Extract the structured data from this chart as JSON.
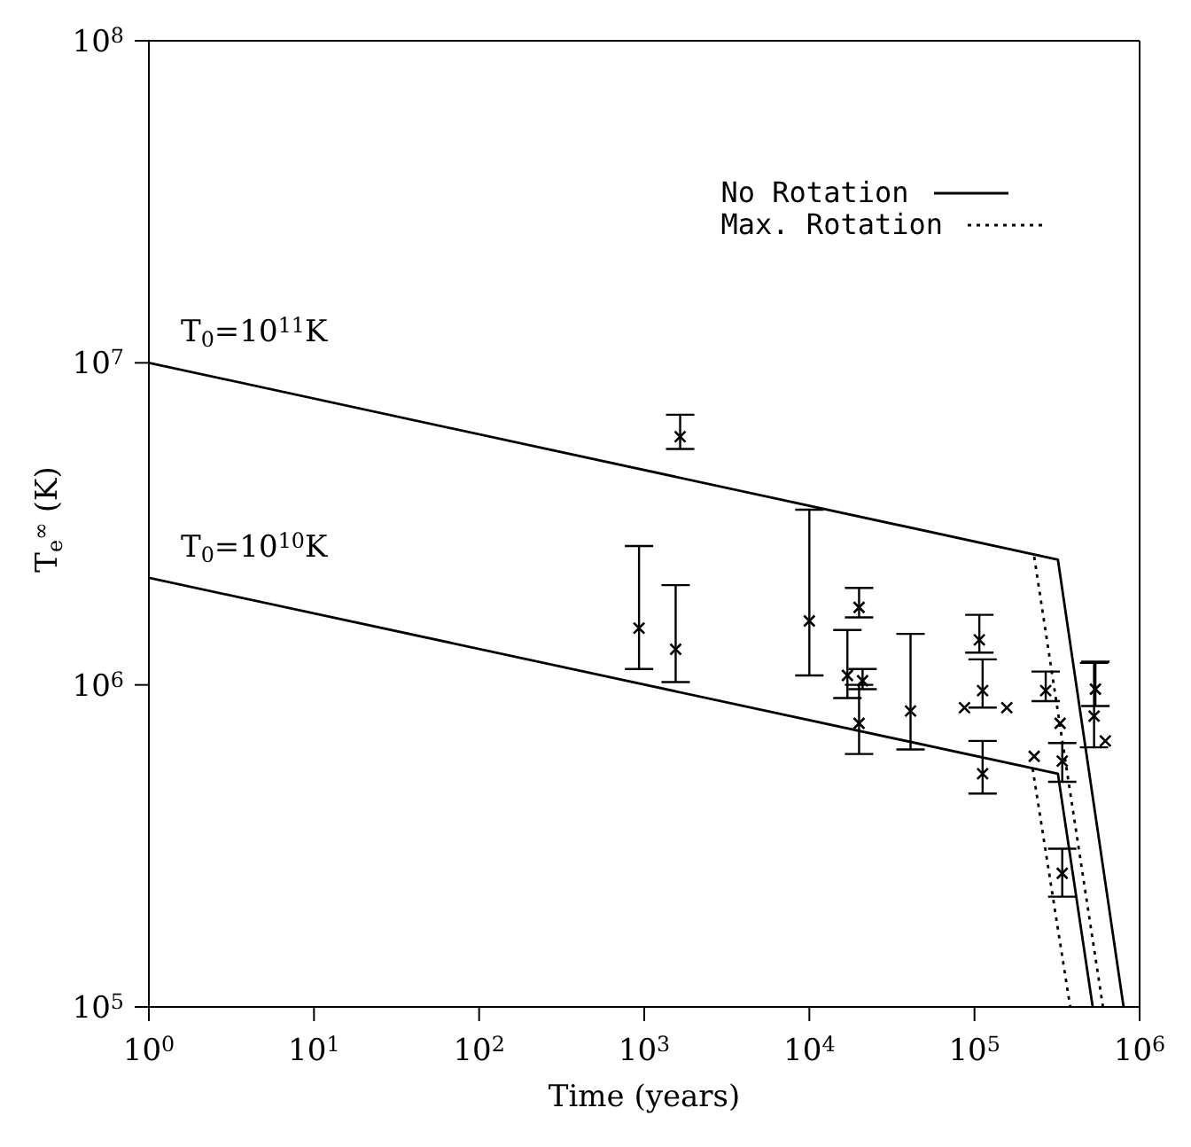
{
  "chart_data": {
    "type": "line",
    "xlabel": "Time (years)",
    "ylabel": "T$_{e}$$^{∞}$ (K)",
    "log": "xy",
    "legend": "top right",
    "xlim": [
      1,
      1000000
    ],
    "ylim": [
      100000,
      100000000
    ],
    "xticks": [
      {
        "value": 1,
        "label": "10$^{0}$"
      },
      {
        "value": 10,
        "label": "10$^{1}$"
      },
      {
        "value": 100,
        "label": "10$^{2}$"
      },
      {
        "value": 1000,
        "label": "10$^{3}$"
      },
      {
        "value": 10000,
        "label": "10$^{4}$"
      },
      {
        "value": 100000,
        "label": "10$^{5}$"
      },
      {
        "value": 1000000,
        "label": "10$^{6}$"
      }
    ],
    "yticks": [
      {
        "value": 100000,
        "label": "10$^{5}$"
      },
      {
        "value": 1000000,
        "label": "10$^{6}$"
      },
      {
        "value": 10000000,
        "label": "10$^{7}$"
      },
      {
        "value": 100000000,
        "label": "10$^{8}$"
      }
    ],
    "annotations": [
      {
        "text": "T$_{0}$=10$^{11}$K",
        "x": 1,
        "y": 10000000
      },
      {
        "text": "T$_{0}$=10$^{10}$K",
        "x": 1,
        "y": 2150000
      }
    ],
    "series": [
      {
        "name": "No Rotation",
        "line_style": "solid",
        "color": "#000000",
        "x": [
          1,
          320000,
          800000
        ],
        "values": [
          10000000,
          2450000,
          100000
        ]
      },
      {
        "line_style": "solid",
        "color": "#000000",
        "x": [
          1,
          320000,
          520000
        ],
        "values": [
          2150000,
          530000,
          100000
        ]
      },
      {
        "name": "Max. Rotation",
        "line_style": "dotted",
        "color": "#000000",
        "x": [
          230000,
          600000
        ],
        "values": [
          2500000,
          100000
        ]
      },
      {
        "line_style": "dotted",
        "color": "#000000",
        "x": [
          225000,
          380000
        ],
        "values": [
          550000,
          100000
        ]
      },
      {
        "type": "scatter",
        "marker": "cross",
        "color": "#000000",
        "x": [
          930,
          1550,
          1650,
          10000,
          17000,
          20000,
          21000,
          20000,
          41000,
          87000,
          107000,
          112000,
          112000,
          157000,
          230000,
          270000,
          330000,
          340000,
          340000,
          540000,
          530000,
          620000
        ],
        "values": [
          1500000,
          1290000,
          5900000,
          1580000,
          1070000,
          1740000,
          1030000,
          760000,
          830000,
          850000,
          1380000,
          960000,
          530000,
          850000,
          600000,
          960000,
          760000,
          580000,
          260000,
          970000,
          800000,
          670000
        ],
        "errors": [
          [
            1120000,
            2700000
          ],
          [
            1020000,
            2040000
          ],
          [
            5400000,
            6900000
          ],
          [
            1070000,
            3500000
          ],
          [
            910000,
            1480000
          ],
          [
            1620000,
            2000000
          ],
          [
            970000,
            1120000
          ],
          [
            610000,
            1000000
          ],
          [
            630000,
            1440000
          ],
          null,
          [
            1260000,
            1650000
          ],
          [
            850000,
            1200000
          ],
          [
            460000,
            670000
          ],
          null,
          null,
          [
            890000,
            1100000
          ],
          null,
          [
            500000,
            660000
          ],
          [
            220000,
            310000
          ],
          [
            860000,
            1180000
          ],
          [
            640000,
            1170000
          ],
          null
        ]
      }
    ]
  }
}
